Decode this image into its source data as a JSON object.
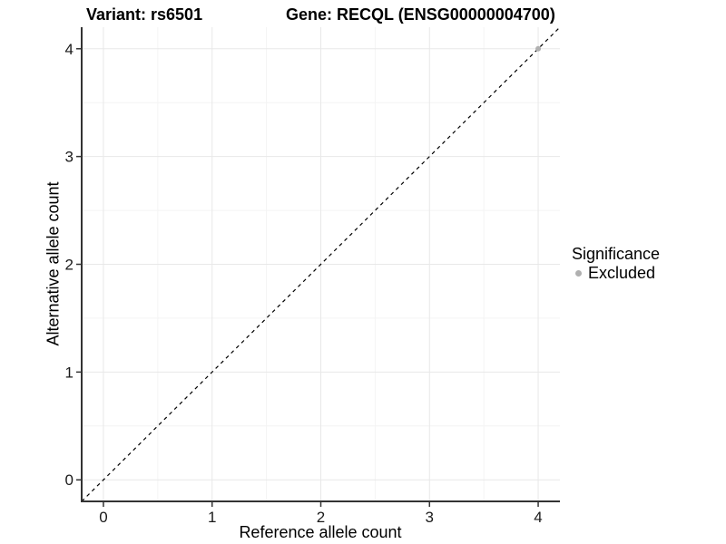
{
  "header": {
    "variant_title": "Variant: rs6501",
    "gene_title": "Gene: RECQL (ENSG00000004700)"
  },
  "chart_data": {
    "type": "scatter",
    "title": "Variant: rs6501   Gene: RECQL (ENSG00000004700)",
    "xlabel": "Reference allele count",
    "ylabel": "Alternative allele count",
    "xlim": [
      -0.2,
      4.2
    ],
    "ylim": [
      -0.2,
      4.2
    ],
    "x_ticks": [
      0,
      1,
      2,
      3,
      4
    ],
    "y_ticks": [
      0,
      1,
      2,
      3,
      4
    ],
    "minor_grid_step": 0.5,
    "grid": true,
    "legend_position": "right",
    "identity_line": {
      "equation": "y = x",
      "style": "dashed",
      "color": "#000000"
    },
    "series": [
      {
        "name": "Excluded",
        "color": "#b0b0b0",
        "points": [
          {
            "x": 4,
            "y": 4
          }
        ]
      }
    ]
  },
  "legend": {
    "title": "Significance",
    "items": [
      {
        "label": "Excluded",
        "color": "#b0b0b0"
      }
    ]
  },
  "colors": {
    "background": "#ffffff",
    "axis_line": "#333333",
    "tick_mark": "#333333",
    "tick_label": "#1a1a1a",
    "grid_major": "#e8e8e8",
    "grid_minor": "#f4f4f4"
  }
}
